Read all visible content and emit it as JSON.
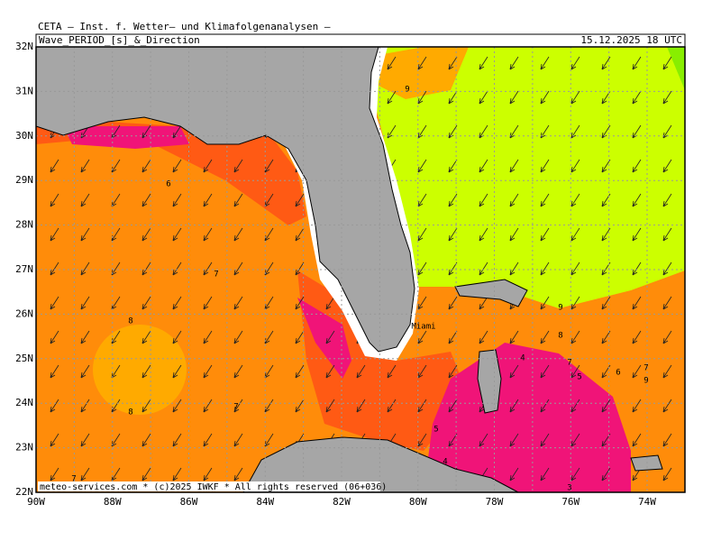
{
  "header": {
    "source": "CETA – Inst. f. Wetter– und Klimafolgenanalysen –",
    "title": "Wave_PERIOD_[s]_&_Direction",
    "valid_time": "15.12.2025 18 UTC"
  },
  "axes": {
    "lat_labels": [
      "32N",
      "31N",
      "30N",
      "29N",
      "28N",
      "27N",
      "26N",
      "25N",
      "24N",
      "23N",
      "22N"
    ],
    "lon_labels": [
      "90W",
      "88W",
      "86W",
      "84W",
      "82W",
      "80W",
      "78W",
      "76W",
      "74W"
    ]
  },
  "labels": [
    {
      "text": "9"
    },
    {
      "text": "6"
    },
    {
      "text": "7"
    },
    {
      "text": "8"
    },
    {
      "text": "8"
    },
    {
      "text": "7"
    },
    {
      "text": "7"
    },
    {
      "text": "9"
    },
    {
      "text": "8"
    },
    {
      "text": "7"
    },
    {
      "text": "6"
    },
    {
      "text": "5"
    },
    {
      "text": "7"
    },
    {
      "text": "9"
    },
    {
      "text": "4"
    },
    {
      "text": "5"
    },
    {
      "text": "4"
    },
    {
      "text": "3"
    }
  ],
  "places": [
    {
      "name": "Miami"
    }
  ],
  "footer": "meteo-services.com * (c)2025 IWKF * All rights reserved (06+036)"
}
